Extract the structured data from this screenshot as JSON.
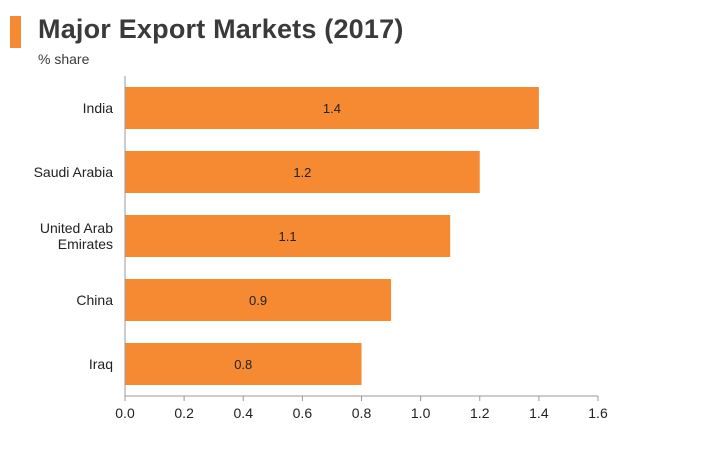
{
  "colors": {
    "accent": "#f58a33",
    "bar": "#f58a33",
    "axis": "#999999",
    "title": "#3a3a3a"
  },
  "chart_data": {
    "type": "bar",
    "orientation": "horizontal",
    "title": "Major Export Markets (2017)",
    "subtitle": "% share",
    "categories": [
      "India",
      "Saudi Arabia",
      "United Arab Emirates",
      "China",
      "Iraq"
    ],
    "category_label_lines": [
      [
        "India"
      ],
      [
        "Saudi Arabia"
      ],
      [
        "United Arab",
        "Emirates"
      ],
      [
        "China"
      ],
      [
        "Iraq"
      ]
    ],
    "values": [
      1.4,
      1.2,
      1.1,
      0.9,
      0.8
    ],
    "data_labels": [
      "1.4",
      "1.2",
      "1.1",
      "0.9",
      "0.8"
    ],
    "xlim": [
      0,
      1.6
    ],
    "xticks": [
      "0.0",
      "0.2",
      "0.4",
      "0.6",
      "0.8",
      "1.0",
      "1.2",
      "1.4",
      "1.6"
    ],
    "xlabel": "",
    "ylabel": "",
    "grid": false,
    "legend": "none"
  }
}
